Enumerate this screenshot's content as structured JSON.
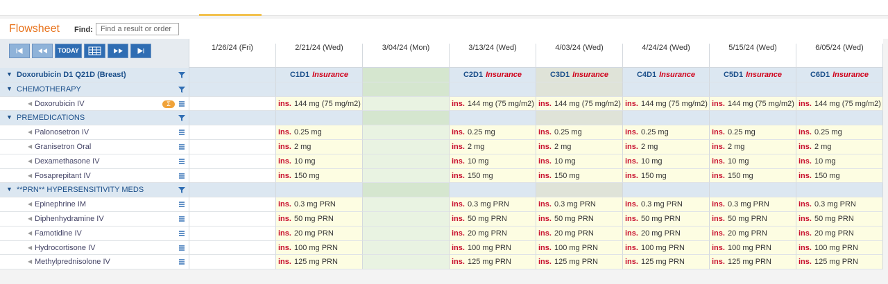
{
  "header": {
    "title": "Flowsheet",
    "find_label": "Find:",
    "find_placeholder": "Find a result or order"
  },
  "toolbar": {
    "today": "TODAY"
  },
  "columns": [
    "1/26/24 (Fri)",
    "2/21/24 (Wed)",
    "3/04/24 (Mon)",
    "3/13/24 (Wed)",
    "4/03/24 (Wed)",
    "4/24/24 (Wed)",
    "5/15/24 (Wed)",
    "6/05/24 (Wed)"
  ],
  "rows": [
    {
      "kind": "plan",
      "label": "Doxorubicin D1 Q21D (Breast)",
      "cells": [
        null,
        {
          "cycle": "C1D1",
          "note": "Insurance"
        },
        null,
        {
          "cycle": "C2D1",
          "note": "Insurance"
        },
        {
          "cycle": "C3D1",
          "note": "Insurance"
        },
        {
          "cycle": "C4D1",
          "note": "Insurance"
        },
        {
          "cycle": "C5D1",
          "note": "Insurance"
        },
        {
          "cycle": "C6D1",
          "note": "Insurance"
        }
      ]
    },
    {
      "kind": "section",
      "label": "CHEMOTHERAPY"
    },
    {
      "kind": "drug",
      "label": "Doxorubicin IV",
      "badge": "Σ",
      "cells": [
        null,
        {
          "flag": "ins.",
          "dose": "144 mg (75 mg/m2)"
        },
        null,
        {
          "flag": "ins.",
          "dose": "144 mg (75 mg/m2)"
        },
        {
          "flag": "ins.",
          "dose": "144 mg (75 mg/m2)"
        },
        {
          "flag": "ins.",
          "dose": "144 mg (75 mg/m2)"
        },
        {
          "flag": "ins.",
          "dose": "144 mg (75 mg/m2)"
        },
        {
          "flag": "ins.",
          "dose": "144 mg (75 mg/m2)"
        }
      ]
    },
    {
      "kind": "section",
      "label": "PREMEDICATIONS"
    },
    {
      "kind": "drug",
      "label": "Palonosetron IV",
      "cells": [
        null,
        {
          "flag": "ins.",
          "dose": "0.25 mg"
        },
        null,
        {
          "flag": "ins.",
          "dose": "0.25 mg"
        },
        {
          "flag": "ins.",
          "dose": "0.25 mg"
        },
        {
          "flag": "ins.",
          "dose": "0.25 mg"
        },
        {
          "flag": "ins.",
          "dose": "0.25 mg"
        },
        {
          "flag": "ins.",
          "dose": "0.25 mg"
        }
      ]
    },
    {
      "kind": "drug",
      "label": "Granisetron Oral",
      "cells": [
        null,
        {
          "flag": "ins.",
          "dose": "2 mg"
        },
        null,
        {
          "flag": "ins.",
          "dose": "2 mg"
        },
        {
          "flag": "ins.",
          "dose": "2 mg"
        },
        {
          "flag": "ins.",
          "dose": "2 mg"
        },
        {
          "flag": "ins.",
          "dose": "2 mg"
        },
        {
          "flag": "ins.",
          "dose": "2 mg"
        }
      ]
    },
    {
      "kind": "drug",
      "label": "Dexamethasone IV",
      "cells": [
        null,
        {
          "flag": "ins.",
          "dose": "10 mg"
        },
        null,
        {
          "flag": "ins.",
          "dose": "10 mg"
        },
        {
          "flag": "ins.",
          "dose": "10 mg"
        },
        {
          "flag": "ins.",
          "dose": "10 mg"
        },
        {
          "flag": "ins.",
          "dose": "10 mg"
        },
        {
          "flag": "ins.",
          "dose": "10 mg"
        }
      ]
    },
    {
      "kind": "drug",
      "label": "Fosaprepitant IV",
      "cells": [
        null,
        {
          "flag": "ins.",
          "dose": "150 mg"
        },
        null,
        {
          "flag": "ins.",
          "dose": "150 mg"
        },
        {
          "flag": "ins.",
          "dose": "150 mg"
        },
        {
          "flag": "ins.",
          "dose": "150 mg"
        },
        {
          "flag": "ins.",
          "dose": "150 mg"
        },
        {
          "flag": "ins.",
          "dose": "150 mg"
        }
      ]
    },
    {
      "kind": "section",
      "label": "**PRN** HYPERSENSITIVITY MEDS"
    },
    {
      "kind": "drug",
      "label": "Epinephrine IM",
      "cells": [
        null,
        {
          "flag": "ins.",
          "dose": "0.3 mg PRN"
        },
        null,
        {
          "flag": "ins.",
          "dose": "0.3 mg PRN"
        },
        {
          "flag": "ins.",
          "dose": "0.3 mg PRN"
        },
        {
          "flag": "ins.",
          "dose": "0.3 mg PRN"
        },
        {
          "flag": "ins.",
          "dose": "0.3 mg PRN"
        },
        {
          "flag": "ins.",
          "dose": "0.3 mg PRN"
        }
      ]
    },
    {
      "kind": "drug",
      "label": "Diphenhydramine IV",
      "cells": [
        null,
        {
          "flag": "ins.",
          "dose": "50 mg PRN"
        },
        null,
        {
          "flag": "ins.",
          "dose": "50 mg PRN"
        },
        {
          "flag": "ins.",
          "dose": "50 mg PRN"
        },
        {
          "flag": "ins.",
          "dose": "50 mg PRN"
        },
        {
          "flag": "ins.",
          "dose": "50 mg PRN"
        },
        {
          "flag": "ins.",
          "dose": "50 mg PRN"
        }
      ]
    },
    {
      "kind": "drug",
      "label": "Famotidine IV",
      "cells": [
        null,
        {
          "flag": "ins.",
          "dose": "20 mg PRN"
        },
        null,
        {
          "flag": "ins.",
          "dose": "20 mg PRN"
        },
        {
          "flag": "ins.",
          "dose": "20 mg PRN"
        },
        {
          "flag": "ins.",
          "dose": "20 mg PRN"
        },
        {
          "flag": "ins.",
          "dose": "20 mg PRN"
        },
        {
          "flag": "ins.",
          "dose": "20 mg PRN"
        }
      ]
    },
    {
      "kind": "drug",
      "label": "Hydrocortisone IV",
      "cells": [
        null,
        {
          "flag": "ins.",
          "dose": "100 mg PRN"
        },
        null,
        {
          "flag": "ins.",
          "dose": "100 mg PRN"
        },
        {
          "flag": "ins.",
          "dose": "100 mg PRN"
        },
        {
          "flag": "ins.",
          "dose": "100 mg PRN"
        },
        {
          "flag": "ins.",
          "dose": "100 mg PRN"
        },
        {
          "flag": "ins.",
          "dose": "100 mg PRN"
        }
      ]
    },
    {
      "kind": "drug",
      "label": "Methylprednisolone IV",
      "cells": [
        null,
        {
          "flag": "ins.",
          "dose": "125 mg PRN"
        },
        null,
        {
          "flag": "ins.",
          "dose": "125 mg PRN"
        },
        {
          "flag": "ins.",
          "dose": "125 mg PRN"
        },
        {
          "flag": "ins.",
          "dose": "125 mg PRN"
        },
        {
          "flag": "ins.",
          "dose": "125 mg PRN"
        },
        {
          "flag": "ins.",
          "dose": "125 mg PRN"
        }
      ]
    }
  ]
}
